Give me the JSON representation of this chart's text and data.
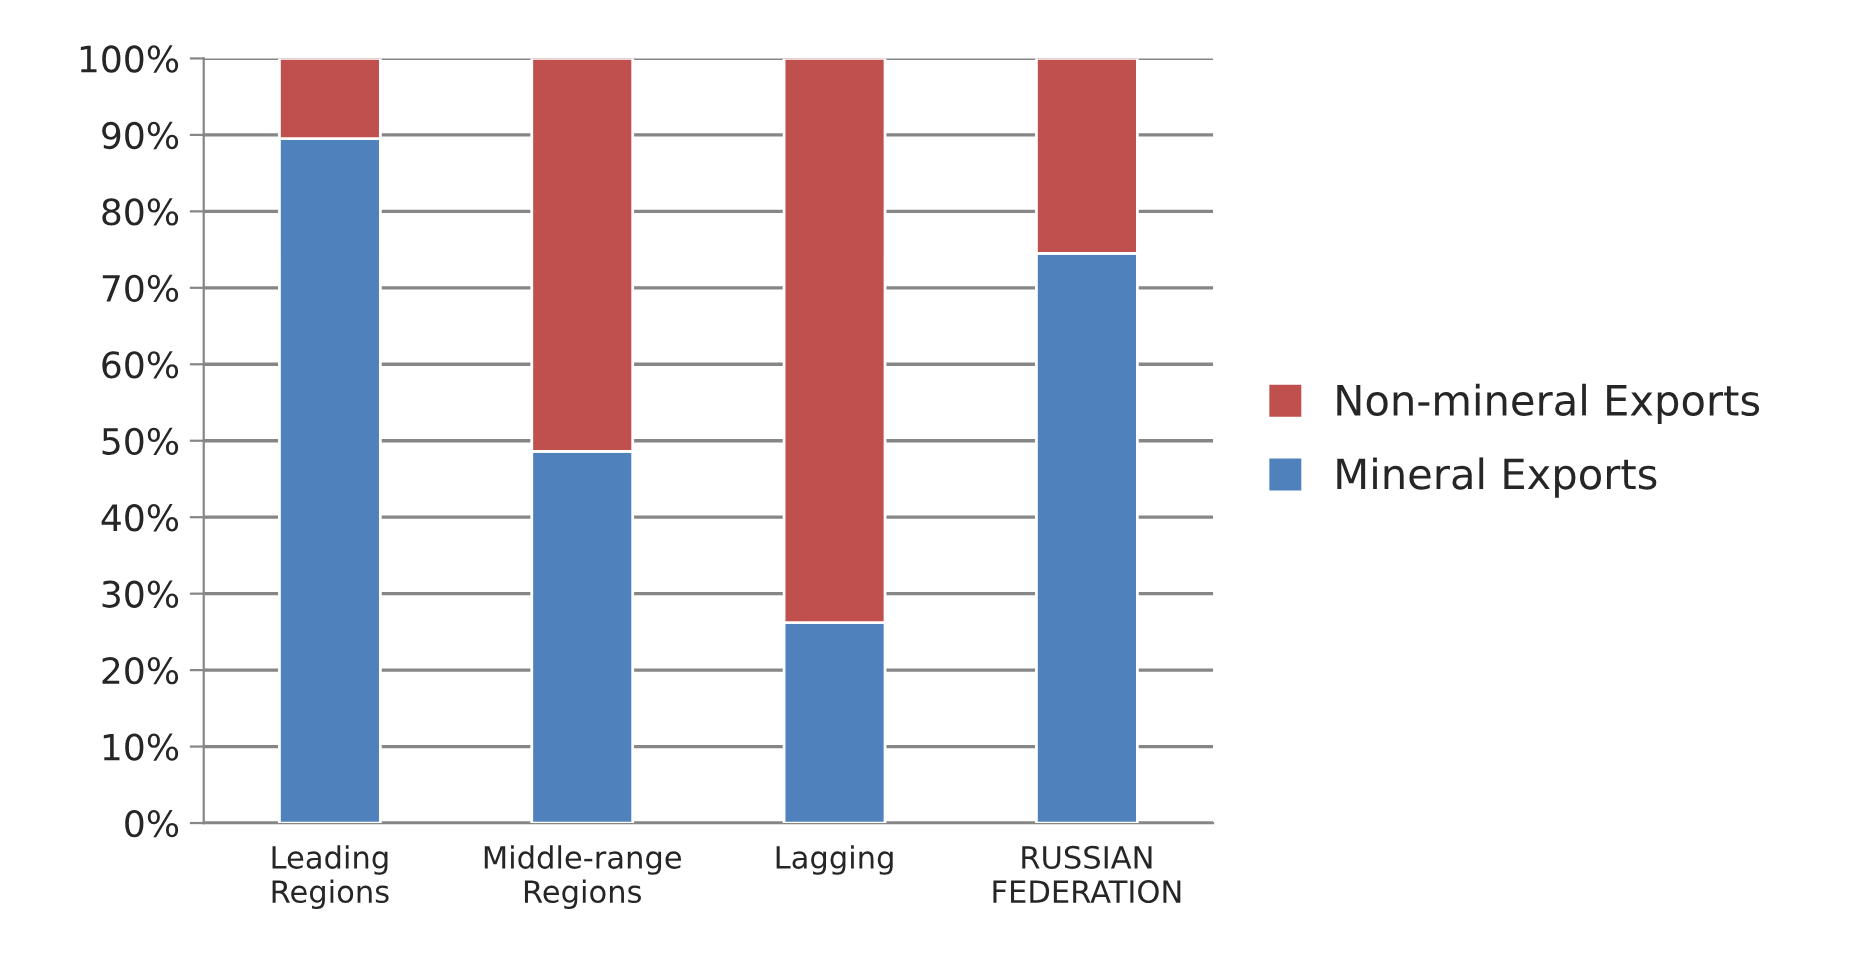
{
  "chart_data": {
    "type": "bar",
    "stacked": true,
    "categories": [
      "Leading\nRegions",
      "Middle-range\nRegions",
      "Lagging",
      "RUSSIAN\nFEDERATION"
    ],
    "series": [
      {
        "name": "Mineral Exports",
        "color": "#4f81bd",
        "values": [
          89.5,
          48.6,
          26.2,
          74.5
        ]
      },
      {
        "name": "Non-mineral Exports",
        "color": "#c0504d",
        "values": [
          10.5,
          51.4,
          73.8,
          25.5
        ]
      }
    ],
    "ylim": [
      0,
      100
    ],
    "yticks": [
      {
        "value": 0,
        "label": "0%"
      },
      {
        "value": 10,
        "label": "10%"
      },
      {
        "value": 20,
        "label": "20%"
      },
      {
        "value": 30,
        "label": "30%"
      },
      {
        "value": 40,
        "label": "40%"
      },
      {
        "value": 50,
        "label": "50%"
      },
      {
        "value": 60,
        "label": "60%"
      },
      {
        "value": 70,
        "label": "70%"
      },
      {
        "value": 80,
        "label": "80%"
      },
      {
        "value": 90,
        "label": "90%"
      },
      {
        "value": 100,
        "label": "100%"
      }
    ],
    "grid": "y",
    "legend": "right"
  }
}
